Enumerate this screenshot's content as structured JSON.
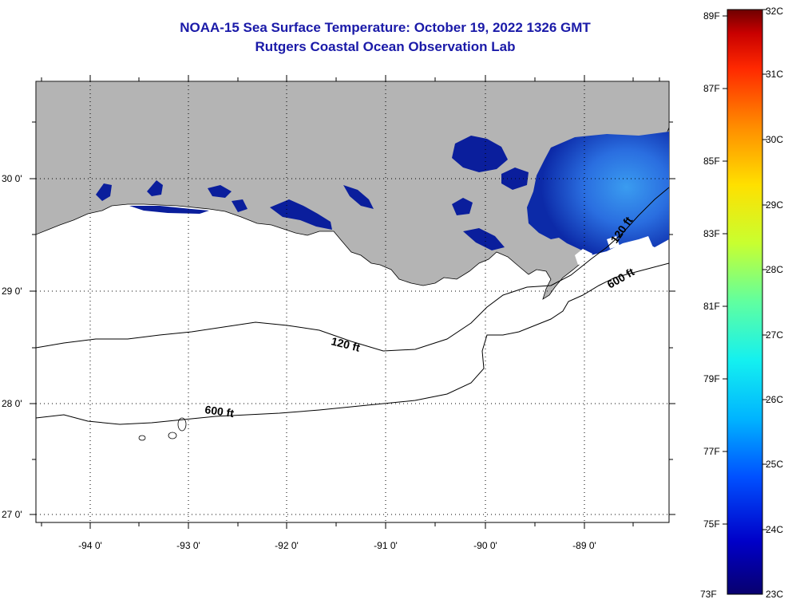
{
  "title": {
    "line1": "NOAA-15 Sea Surface Temperature:  October 19, 2022 1326 GMT",
    "line2": "Rutgers Coastal Ocean Observation Lab"
  },
  "map": {
    "longitude_labels": [
      "-94 0'",
      "-93 0'",
      "-92 0'",
      "-91 0'",
      "-90 0'",
      "-89 0'"
    ],
    "latitude_labels": [
      "30 0'",
      "29 0'",
      "28 0'",
      "27 0'"
    ],
    "contour_labels": [
      "120 ft",
      "600 ft",
      "600 ft",
      "120 ft"
    ],
    "colors": {
      "land": "#b4b4b4",
      "water_nodata": "#ffffff",
      "sst_cold": "#0a1e9c",
      "sst_warm": "#2a7de0"
    }
  },
  "colorbar": {
    "fahrenheit_labels": [
      "89F",
      "87F",
      "85F",
      "83F",
      "81F",
      "79F",
      "77F",
      "75F",
      "73F"
    ],
    "celsius_labels": [
      "32C",
      "31C",
      "30C",
      "29C",
      "28C",
      "27C",
      "26C",
      "25C",
      "24C",
      "23C"
    ],
    "colors": [
      "#08006e",
      "#0000c8",
      "#0050ff",
      "#00b4ff",
      "#14f0f0",
      "#60ffa0",
      "#c8ff30",
      "#ffe000",
      "#ff8c00",
      "#ff2800",
      "#c80000",
      "#6e0000"
    ]
  }
}
